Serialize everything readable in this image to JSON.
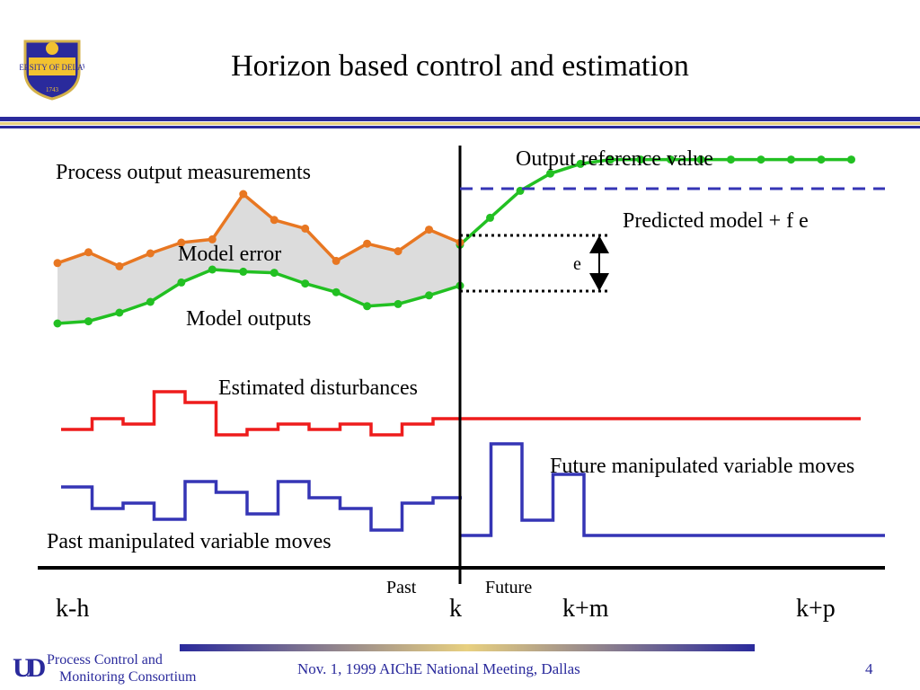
{
  "header": {
    "title": "Horizon based control and estimation",
    "logo_text": "UNIVERSITY OF DELAWARE",
    "logo_year": "1743"
  },
  "labels": {
    "process_output": "Process output measurements",
    "output_reference": "Output reference value",
    "predicted_model": "Predicted model + f e",
    "model_error": "Model error",
    "e_label": "e",
    "model_outputs": "Model outputs",
    "estimated_disturbances": "Estimated disturbances",
    "future_moves": "Future manipulated variable moves",
    "past_moves": "Past manipulated variable moves",
    "past": "Past",
    "future": "Future"
  },
  "axis": {
    "k_minus_h": "k-h",
    "k": "k",
    "k_plus_m": "k+m",
    "k_plus_p": "k+p"
  },
  "footer": {
    "logo_mark": "UD",
    "consortium_line1": "Process Control and",
    "consortium_line2": "Monitoring Consortium",
    "meeting": "Nov. 1, 1999 AIChE National Meeting, Dallas",
    "page_number": "4"
  },
  "colors": {
    "measurement": "#e87722",
    "model": "#22c022",
    "disturbance": "#ee1c1c",
    "manipulated": "#3535b5",
    "error_fill": "#dcdcdc",
    "accent_blue": "#2a2a9c",
    "accent_gold": "#e8d080"
  },
  "chart_data": {
    "type": "diagram",
    "title": "Horizon based control and estimation",
    "x_ticks": [
      "k-h",
      "k",
      "k+m",
      "k+p"
    ],
    "series": [
      {
        "name": "Process output measurements",
        "values": [
          0.56,
          0.66,
          0.53,
          0.65,
          0.75,
          0.78,
          1.2,
          0.96,
          0.88,
          0.58,
          0.74,
          0.67,
          0.87,
          0.75
        ]
      },
      {
        "name": "Model outputs",
        "values": [
          0.0,
          0.02,
          0.1,
          0.2,
          0.38,
          0.5,
          0.48,
          0.47,
          0.37,
          0.29,
          0.16,
          0.18,
          0.26,
          0.35
        ]
      },
      {
        "name": "Predicted model + f e",
        "values": [
          0.73,
          0.98,
          1.23,
          1.39,
          1.48,
          1.52,
          1.52,
          1.52,
          1.52,
          1.52,
          1.52,
          1.52,
          1.52,
          1.52
        ]
      },
      {
        "name": "Estimated disturbances",
        "values": [
          0.0,
          1.0,
          0.5,
          3.5,
          2.5,
          -0.5,
          0.0,
          0.5,
          0.0,
          0.5,
          -0.5,
          0.5,
          1.0
        ]
      },
      {
        "name": "Past manipulated variable moves",
        "values": [
          2.5,
          0.5,
          1.0,
          -0.5,
          3.0,
          2.0,
          0.0,
          3.0,
          1.5,
          0.5,
          -1.5,
          1.0,
          1.5
        ]
      },
      {
        "name": "Future manipulated variable moves",
        "values": [
          -1.0,
          5.0,
          0.0,
          3.0,
          -1.0
        ]
      }
    ]
  }
}
